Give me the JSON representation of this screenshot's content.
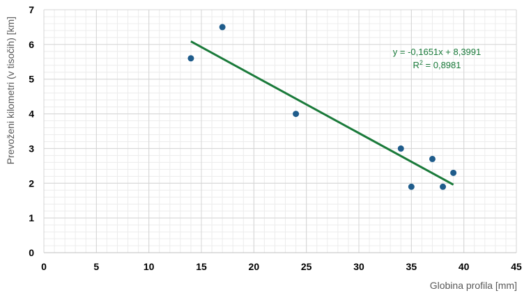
{
  "chart_data": {
    "type": "scatter",
    "xlabel": "Globina profila [mm]",
    "ylabel": "Prevoženi kilometri (v tisočih) [km]",
    "xlim": [
      0,
      45
    ],
    "ylim": [
      0,
      7
    ],
    "xticks": [
      "0",
      "5",
      "10",
      "15",
      "20",
      "25",
      "30",
      "35",
      "40",
      "45"
    ],
    "yticks": [
      "0",
      "1",
      "2",
      "3",
      "4",
      "5",
      "6",
      "7"
    ],
    "grid": "major and minor",
    "legend": "none",
    "series": [
      {
        "points": [
          {
            "x": 14,
            "y": 5.6
          },
          {
            "x": 17,
            "y": 6.5
          },
          {
            "x": 24,
            "y": 4.0
          },
          {
            "x": 34,
            "y": 3.0
          },
          {
            "x": 35,
            "y": 1.9
          },
          {
            "x": 37,
            "y": 2.7
          },
          {
            "x": 38,
            "y": 1.9
          },
          {
            "x": 39,
            "y": 2.3
          }
        ],
        "color": "#1f5c8b"
      }
    ],
    "trendline": {
      "type": "linear",
      "slope": -0.1651,
      "intercept": 8.3991,
      "x_range": [
        14,
        39
      ],
      "color": "#1a7a3a",
      "equation": "y = -0,1651x + 8,3991",
      "r2_label": "R",
      "r2_sup": "2",
      "r2_value": " = 0,8981"
    }
  }
}
